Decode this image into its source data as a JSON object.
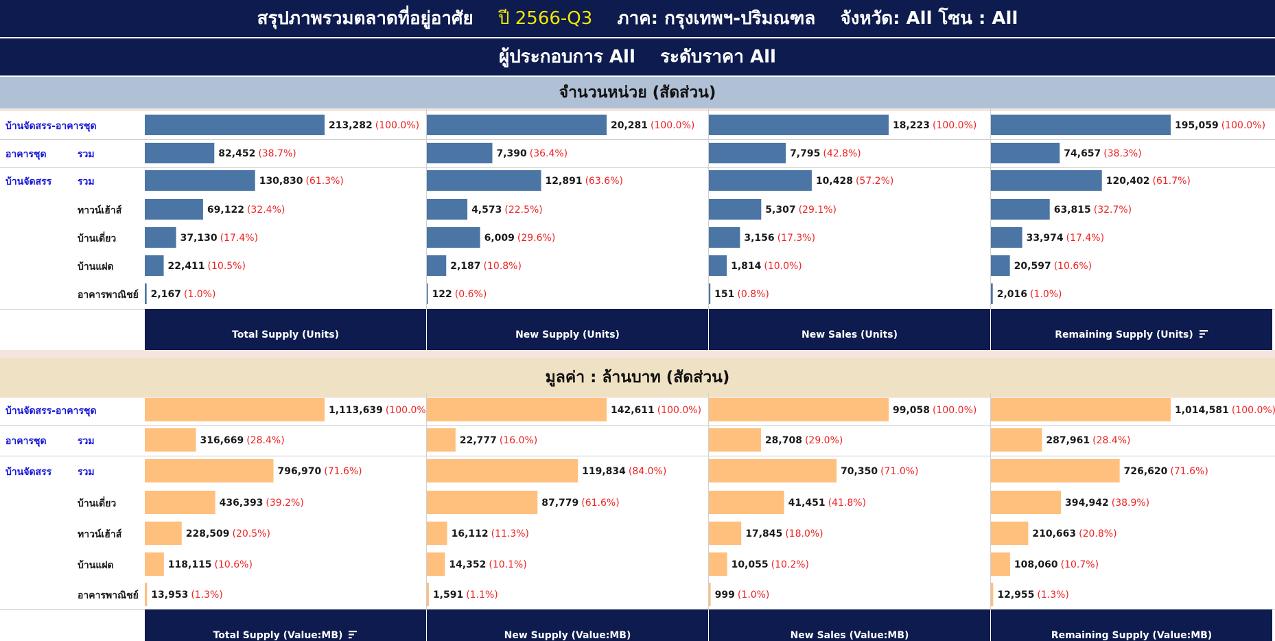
{
  "header": {
    "title_prefix": "สรุปภาพรวมตลาดที่อยู่อาศัย",
    "period": "ปี 2566-Q3",
    "region": "ภาค: กรุงเทพฯ-ปริมณฑล",
    "province": "จังหวัด: All",
    "zone": "โซน : All",
    "developer": "ผู้ประกอบการ All",
    "price_level": "ระดับราคา All"
  },
  "chart_data": [
    {
      "type": "bar",
      "title": "จำนวนหน่วย (สัดส่วน)",
      "bar_color": "#4a75a5",
      "categories": [
        "บ้านจัดสรร-อาคารชุด",
        "อาคารชุด รวม",
        "บ้านจัดสรร รวม",
        "ทาวน์เฮ้าส์",
        "บ้านเดี่ยว",
        "บ้านแฝด",
        "อาคารพาณิชย์"
      ],
      "row_labels": [
        {
          "group": "บ้านจัดสรร-อาคารชุด",
          "sub": ""
        },
        {
          "group": "อาคารชุด",
          "sub": "รวม"
        },
        {
          "group": "บ้านจัดสรร",
          "sub": "รวม"
        },
        {
          "group": "",
          "sub": "ทาวน์เฮ้าส์"
        },
        {
          "group": "",
          "sub": "บ้านเดี่ยว"
        },
        {
          "group": "",
          "sub": "บ้านแฝด"
        },
        {
          "group": "",
          "sub": "อาคารพาณิชย์"
        }
      ],
      "series": [
        {
          "name": "Total Supply (Units)",
          "values": [
            213282,
            82452,
            130830,
            69122,
            37130,
            22411,
            2167
          ],
          "labels": [
            "213,282",
            "82,452",
            "130,830",
            "69,122",
            "37,130",
            "22,411",
            "2,167"
          ],
          "pct": [
            "(100.0%)",
            "(38.7%)",
            "(61.3%)",
            "(32.4%)",
            "(17.4%)",
            "(10.5%)",
            "(1.0%)"
          ]
        },
        {
          "name": "New Supply (Units)",
          "values": [
            20281,
            7390,
            12891,
            4573,
            6009,
            2187,
            122
          ],
          "labels": [
            "20,281",
            "7,390",
            "12,891",
            "4,573",
            "6,009",
            "2,187",
            "122"
          ],
          "pct": [
            "(100.0%)",
            "(36.4%)",
            "(63.6%)",
            "(22.5%)",
            "(29.6%)",
            "(10.8%)",
            "(0.6%)"
          ]
        },
        {
          "name": "New Sales (Units)",
          "values": [
            18223,
            7795,
            10428,
            5307,
            3156,
            1814,
            151
          ],
          "labels": [
            "18,223",
            "7,795",
            "10,428",
            "5,307",
            "3,156",
            "1,814",
            "151"
          ],
          "pct": [
            "(100.0%)",
            "(42.8%)",
            "(57.2%)",
            "(29.1%)",
            "(17.3%)",
            "(10.0%)",
            "(0.8%)"
          ]
        },
        {
          "name": "Remaining Supply (Units)",
          "values": [
            195059,
            74657,
            120402,
            63815,
            33974,
            20597,
            2016
          ],
          "labels": [
            "195,059",
            "74,657",
            "120,402",
            "63,815",
            "33,974",
            "20,597",
            "2,016"
          ],
          "pct": [
            "(100.0%)",
            "(38.3%)",
            "(61.7%)",
            "(32.7%)",
            "(17.4%)",
            "(10.6%)",
            "(1.0%)"
          ]
        }
      ]
    },
    {
      "type": "bar",
      "title": "มูลค่า : ล้านบาท (สัดส่วน)",
      "bar_color": "#ffbf7d",
      "categories": [
        "บ้านจัดสรร-อาคารชุด",
        "อาคารชุด รวม",
        "บ้านจัดสรร รวม",
        "บ้านเดี่ยว",
        "ทาวน์เฮ้าส์",
        "บ้านแฝด",
        "อาคารพาณิชย์"
      ],
      "row_labels": [
        {
          "group": "บ้านจัดสรร-อาคารชุด",
          "sub": ""
        },
        {
          "group": "อาคารชุด",
          "sub": "รวม"
        },
        {
          "group": "บ้านจัดสรร",
          "sub": "รวม"
        },
        {
          "group": "",
          "sub": "บ้านเดี่ยว"
        },
        {
          "group": "",
          "sub": "ทาวน์เฮ้าส์"
        },
        {
          "group": "",
          "sub": "บ้านแฝด"
        },
        {
          "group": "",
          "sub": "อาคารพาณิชย์"
        }
      ],
      "series": [
        {
          "name": "Total Supply (Value:MB)",
          "values": [
            1113639,
            316669,
            796970,
            436393,
            228509,
            118115,
            13953
          ],
          "labels": [
            "1,113,639",
            "316,669",
            "796,970",
            "436,393",
            "228,509",
            "118,115",
            "13,953"
          ],
          "pct": [
            "(100.0%)",
            "(28.4%)",
            "(71.6%)",
            "(39.2%)",
            "(20.5%)",
            "(10.6%)",
            "(1.3%)"
          ]
        },
        {
          "name": "New Supply (Value:MB)",
          "values": [
            142611,
            22777,
            119834,
            87779,
            16112,
            14352,
            1591
          ],
          "labels": [
            "142,611",
            "22,777",
            "119,834",
            "87,779",
            "16,112",
            "14,352",
            "1,591"
          ],
          "pct": [
            "(100.0%)",
            "(16.0%)",
            "(84.0%)",
            "(61.6%)",
            "(11.3%)",
            "(10.1%)",
            "(1.1%)"
          ]
        },
        {
          "name": "New Sales (Value:MB)",
          "values": [
            99058,
            28708,
            70350,
            41451,
            17845,
            10055,
            999
          ],
          "labels": [
            "99,058",
            "28,708",
            "70,350",
            "41,451",
            "17,845",
            "10,055",
            "999"
          ],
          "pct": [
            "(100.0%)",
            "(29.0%)",
            "(71.0%)",
            "(41.8%)",
            "(18.0%)",
            "(10.2%)",
            "(1.0%)"
          ]
        },
        {
          "name": "Remaining Supply (Value:MB)",
          "values": [
            1014581,
            287961,
            726620,
            394942,
            210663,
            108060,
            12955
          ],
          "labels": [
            "1,014,581",
            "287,961",
            "726,620",
            "394,942",
            "210,663",
            "108,060",
            "12,955"
          ],
          "pct": [
            "(100.0%)",
            "(28.4%)",
            "(71.6%)",
            "(38.9%)",
            "(20.8%)",
            "(10.7%)",
            "(1.3%)"
          ]
        }
      ]
    }
  ],
  "icons": {
    "sort": "sort-icon"
  }
}
